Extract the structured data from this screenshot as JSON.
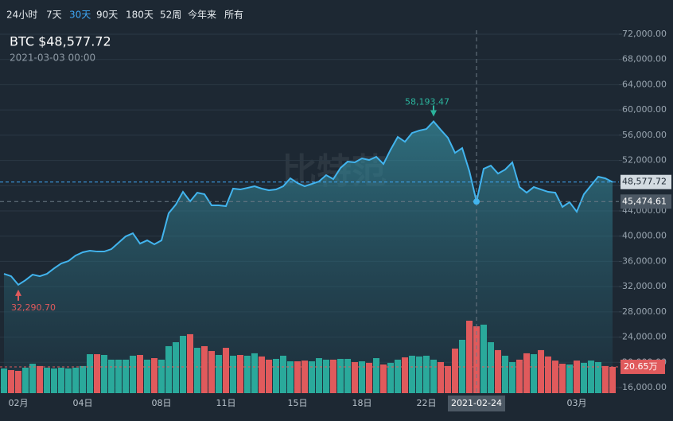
{
  "tabs": [
    "24小时",
    "7天",
    "30天",
    "90天",
    "180天",
    "52周",
    "今年来",
    "所有"
  ],
  "active_tab": 2,
  "watermark": "比特范",
  "chart_data": {
    "type": "line",
    "title": "BTC $48,577.72",
    "subtitle": "2021-03-03 00:00",
    "color": "#42b4ee",
    "categories": [
      null,
      null,
      "02月",
      null,
      null,
      null,
      null,
      null,
      null,
      null,
      null,
      "04日",
      null,
      null,
      null,
      null,
      null,
      null,
      null,
      null,
      null,
      null,
      "08日",
      null,
      null,
      null,
      null,
      null,
      null,
      null,
      null,
      "11日",
      null,
      null,
      null,
      null,
      null,
      null,
      null,
      null,
      null,
      "15日",
      null,
      null,
      null,
      null,
      null,
      null,
      null,
      null,
      "18日",
      null,
      null,
      null,
      null,
      null,
      null,
      null,
      null,
      "22日",
      null,
      null,
      null,
      null,
      null,
      null,
      "2021-02-24",
      null,
      null,
      null,
      null,
      null,
      null,
      null,
      null,
      null,
      null,
      null,
      null,
      null,
      "03月",
      null,
      null,
      null,
      null,
      null
    ],
    "crosshair_index": 66,
    "values": [
      34030,
      33650,
      32290.7,
      33020,
      33900,
      33650,
      34030,
      34900,
      35670,
      36050,
      36930,
      37440,
      37690,
      37560,
      37560,
      37940,
      38950,
      39960,
      40460,
      38820,
      39330,
      38700,
      39330,
      43620,
      45000,
      47020,
      45510,
      46890,
      46640,
      44880,
      44880,
      44750,
      47530,
      47400,
      47650,
      47900,
      47530,
      47270,
      47400,
      47900,
      49160,
      48410,
      47900,
      48280,
      48660,
      49670,
      49040,
      50800,
      51810,
      51690,
      52320,
      52070,
      52570,
      51440,
      53700,
      55720,
      54960,
      56350,
      56730,
      56980,
      58193.47,
      56860,
      55600,
      53200,
      53960,
      50300,
      45474.61,
      50680,
      51180,
      49920,
      50550,
      51690,
      47780,
      46890,
      47780,
      47400,
      47020,
      46890,
      44630,
      45380,
      43870,
      46640,
      48030,
      49420,
      49160,
      48577.72
    ],
    "value_labels": [
      null,
      null,
      "32,290.70",
      null,
      null,
      null,
      null,
      null,
      null,
      null,
      null,
      null,
      null,
      null,
      null,
      null,
      null,
      null,
      null,
      null,
      null,
      null,
      null,
      null,
      null,
      null,
      null,
      null,
      null,
      null,
      null,
      null,
      null,
      null,
      null,
      null,
      null,
      null,
      null,
      null,
      null,
      null,
      null,
      null,
      null,
      null,
      null,
      null,
      null,
      null,
      null,
      null,
      null,
      null,
      null,
      null,
      null,
      null,
      null,
      null,
      "58,193.47",
      null,
      null,
      null,
      null,
      null,
      "45,474.61",
      null,
      null,
      null,
      null,
      null,
      null,
      null,
      null,
      null,
      null,
      null,
      null,
      null,
      null,
      null,
      null,
      null,
      null,
      "48,577.72"
    ],
    "volume": {
      "colors": {
        "up": "#2aa99b",
        "down": "#e05a5c"
      },
      "values": [
        19.4,
        18.1,
        17.5,
        20.0,
        23.1,
        21.3,
        20.0,
        19.4,
        20.0,
        19.4,
        20.0,
        21.3,
        30.6,
        30.6,
        30.0,
        26.3,
        26.3,
        26.3,
        29.4,
        30.0,
        26.3,
        27.5,
        26.3,
        36.9,
        40.0,
        45.0,
        46.3,
        35.6,
        36.9,
        33.1,
        30.0,
        35.6,
        29.4,
        30.0,
        29.4,
        31.3,
        28.8,
        26.3,
        26.9,
        29.4,
        25.0,
        25.0,
        25.6,
        25.0,
        27.5,
        26.3,
        26.3,
        26.9,
        26.9,
        24.4,
        25.0,
        23.8,
        27.5,
        22.5,
        23.8,
        26.3,
        28.1,
        29.4,
        28.8,
        29.4,
        26.3,
        24.4,
        21.3,
        35.0,
        41.9,
        56.9,
        52.5,
        53.8,
        40.0,
        33.8,
        29.4,
        24.4,
        26.3,
        31.3,
        30.6,
        33.8,
        28.8,
        25.6,
        23.1,
        22.5,
        25.6,
        23.8,
        25.6,
        24.4,
        21.3,
        20.65
      ],
      "value_labels": [
        null,
        null,
        null,
        null,
        null,
        null,
        null,
        null,
        null,
        null,
        null,
        null,
        null,
        null,
        null,
        null,
        null,
        null,
        null,
        null,
        null,
        null,
        null,
        null,
        null,
        null,
        null,
        null,
        null,
        null,
        null,
        null,
        null,
        null,
        null,
        null,
        null,
        null,
        null,
        null,
        null,
        null,
        null,
        null,
        null,
        null,
        null,
        null,
        null,
        null,
        null,
        null,
        null,
        null,
        null,
        null,
        null,
        null,
        null,
        null,
        null,
        null,
        null,
        null,
        null,
        null,
        null,
        null,
        null,
        null,
        null,
        null,
        null,
        null,
        null,
        null,
        null,
        null,
        null,
        null,
        null,
        null,
        null,
        null,
        null,
        "20.65万"
      ]
    },
    "ylim": [
      16000,
      72000
    ],
    "yticks": [
      {
        "value": 16000,
        "label": "16,000.00"
      },
      {
        "value": 20000,
        "label": "20,000.00"
      },
      {
        "value": 24000,
        "label": "24,000.00"
      },
      {
        "value": 28000,
        "label": "28,000.00"
      },
      {
        "value": 32000,
        "label": "32,000.00"
      },
      {
        "value": 36000,
        "label": "36,000.00"
      },
      {
        "value": 40000,
        "label": "40,000.00"
      },
      {
        "value": 44000,
        "label": "44,000.00"
      },
      {
        "value": 48000,
        "label": "48,000.00"
      },
      {
        "value": 52000,
        "label": "52,000.00"
      },
      {
        "value": 56000,
        "label": "56,000.00"
      },
      {
        "value": 60000,
        "label": "60,000.00"
      },
      {
        "value": 64000,
        "label": "64,000.00"
      },
      {
        "value": 68000,
        "label": "68,000.00"
      },
      {
        "value": 72000,
        "label": "72,000.00"
      }
    ],
    "grid": true
  }
}
